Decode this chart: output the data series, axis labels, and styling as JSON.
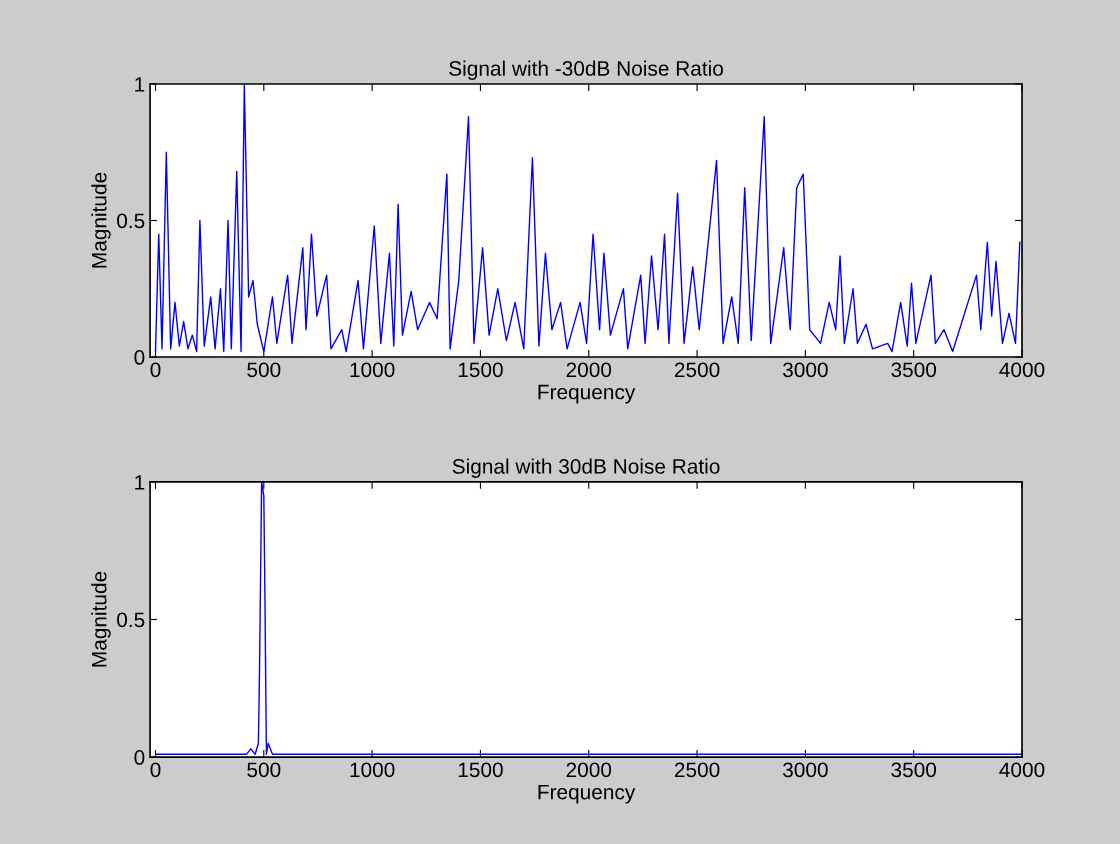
{
  "chart_data": [
    {
      "type": "line",
      "title": "Signal with -30dB Noise Ratio",
      "xlabel": "Frequency",
      "ylabel": "Magnitude",
      "xlim": [
        -25,
        4000
      ],
      "ylim": [
        0,
        1
      ],
      "xticks": [
        0,
        500,
        1000,
        1500,
        2000,
        2500,
        3000,
        3500,
        4000
      ],
      "yticks": [
        0,
        0.5,
        1
      ],
      "grid": false,
      "legend": false,
      "series": [
        {
          "color": "#0000ff",
          "x": [
            0,
            15,
            30,
            50,
            70,
            90,
            110,
            130,
            150,
            170,
            190,
            205,
            225,
            255,
            275,
            300,
            315,
            335,
            350,
            375,
            395,
            410,
            430,
            450,
            470,
            500,
            540,
            560,
            610,
            630,
            680,
            695,
            720,
            745,
            790,
            810,
            860,
            880,
            935,
            960,
            1010,
            1040,
            1080,
            1100,
            1120,
            1140,
            1180,
            1210,
            1265,
            1300,
            1345,
            1360,
            1400,
            1445,
            1470,
            1510,
            1540,
            1580,
            1620,
            1660,
            1700,
            1740,
            1770,
            1800,
            1830,
            1870,
            1900,
            1960,
            1990,
            2020,
            2050,
            2070,
            2100,
            2160,
            2180,
            2240,
            2260,
            2290,
            2320,
            2350,
            2370,
            2410,
            2440,
            2480,
            2510,
            2590,
            2620,
            2660,
            2690,
            2720,
            2750,
            2810,
            2840,
            2900,
            2930,
            2960,
            2990,
            3020,
            3070,
            3110,
            3140,
            3160,
            3180,
            3220,
            3240,
            3280,
            3310,
            3380,
            3400,
            3440,
            3470,
            3490,
            3510,
            3580,
            3600,
            3640,
            3680,
            3790,
            3810,
            3840,
            3860,
            3880,
            3910,
            3940,
            3970,
            3990
          ],
          "values": [
            0.02,
            0.45,
            0.03,
            0.75,
            0.03,
            0.2,
            0.04,
            0.13,
            0.03,
            0.08,
            0.02,
            0.5,
            0.04,
            0.22,
            0.03,
            0.25,
            0.02,
            0.5,
            0.03,
            0.68,
            0.02,
            1.0,
            0.22,
            0.28,
            0.12,
            0.02,
            0.22,
            0.05,
            0.3,
            0.05,
            0.4,
            0.1,
            0.45,
            0.15,
            0.3,
            0.03,
            0.1,
            0.02,
            0.28,
            0.03,
            0.48,
            0.05,
            0.38,
            0.04,
            0.56,
            0.08,
            0.24,
            0.1,
            0.2,
            0.14,
            0.67,
            0.03,
            0.28,
            0.88,
            0.05,
            0.4,
            0.08,
            0.25,
            0.06,
            0.2,
            0.03,
            0.73,
            0.04,
            0.38,
            0.1,
            0.2,
            0.03,
            0.2,
            0.05,
            0.45,
            0.1,
            0.38,
            0.08,
            0.25,
            0.03,
            0.3,
            0.05,
            0.37,
            0.1,
            0.45,
            0.05,
            0.6,
            0.05,
            0.33,
            0.1,
            0.72,
            0.05,
            0.22,
            0.05,
            0.62,
            0.06,
            0.88,
            0.05,
            0.4,
            0.1,
            0.62,
            0.67,
            0.1,
            0.05,
            0.2,
            0.1,
            0.37,
            0.05,
            0.25,
            0.05,
            0.12,
            0.03,
            0.05,
            0.02,
            0.2,
            0.04,
            0.27,
            0.05,
            0.3,
            0.05,
            0.1,
            0.02,
            0.3,
            0.1,
            0.42,
            0.15,
            0.35,
            0.05,
            0.16,
            0.05,
            0.42
          ]
        }
      ]
    },
    {
      "type": "line",
      "title": "Signal with 30dB Noise Ratio",
      "xlabel": "Frequency",
      "ylabel": "Magnitude",
      "xlim": [
        -25,
        4000
      ],
      "ylim": [
        0,
        1
      ],
      "xticks": [
        0,
        500,
        1000,
        1500,
        2000,
        2500,
        3000,
        3500,
        4000
      ],
      "yticks": [
        0,
        0.5,
        1
      ],
      "grid": false,
      "legend": false,
      "series": [
        {
          "color": "#0000ff",
          "x": [
            0,
            420,
            440,
            460,
            475,
            480,
            490,
            500,
            505,
            512,
            520,
            540,
            4000
          ],
          "values": [
            0.01,
            0.01,
            0.03,
            0.01,
            0.05,
            0.3,
            1.0,
            0.95,
            0.6,
            0.01,
            0.05,
            0.01,
            0.01
          ]
        }
      ]
    }
  ]
}
